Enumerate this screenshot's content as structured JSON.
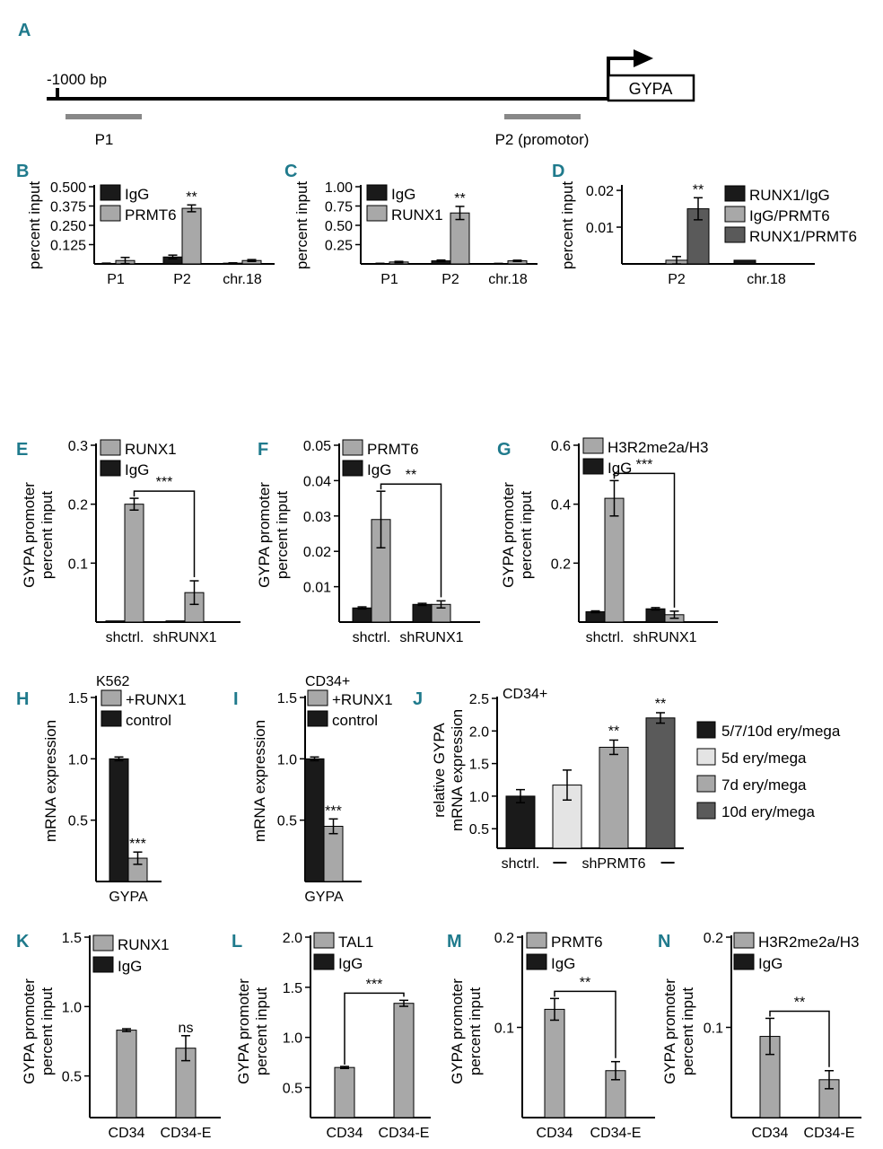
{
  "figure": {
    "palette": {
      "black": "#1a1a1a",
      "gray": "#a8a8a8",
      "light": "#e4e4e4",
      "dark": "#5a5a5a",
      "panel_letter": "#1f7a8c",
      "edge": "#000000"
    },
    "schematic": {
      "label": "A",
      "bp_label": "-1000 bp",
      "gene": "GYPA",
      "probe1": "P1",
      "probe2": "P2 (promotor)"
    }
  },
  "chart_data": [
    {
      "id": "B",
      "label": "B",
      "type": "bar",
      "title": "",
      "xlabel": "",
      "ylabel": [
        "percent input"
      ],
      "ylim": [
        0,
        0.5
      ],
      "yticks": [
        "0.500",
        "0.375",
        "0.250",
        "0.125"
      ],
      "yticks_values": [
        0.5,
        0.375,
        0.25,
        0.125
      ],
      "categories": [
        "P1",
        "P2",
        "chr.18"
      ],
      "series": [
        {
          "name": "IgG",
          "color": "black",
          "values": [
            0.003,
            0.045,
            0.005
          ],
          "errors": [
            0.002,
            0.012,
            0.002
          ]
        },
        {
          "name": "PRMT6",
          "color": "gray",
          "values": [
            0.022,
            0.36,
            0.022
          ],
          "errors": [
            0.02,
            0.022,
            0.006
          ]
        }
      ],
      "annotations": [
        {
          "cat": 1,
          "series": 1,
          "text": "**"
        }
      ]
    },
    {
      "id": "C",
      "label": "C",
      "type": "bar",
      "title": "",
      "xlabel": "",
      "ylabel": [
        "percent input"
      ],
      "ylim": [
        0,
        1
      ],
      "yticks": [
        "1.00",
        "0.75",
        "0.50",
        "0.25"
      ],
      "yticks_values": [
        1,
        0.75,
        0.5,
        0.25
      ],
      "categories": [
        "P1",
        "P2",
        "chr.18"
      ],
      "series": [
        {
          "name": "IgG",
          "color": "black",
          "values": [
            0.005,
            0.04,
            0.005
          ],
          "errors": [
            0.003,
            0.01,
            0.002
          ]
        },
        {
          "name": "RUNX1",
          "color": "gray",
          "values": [
            0.025,
            0.66,
            0.04
          ],
          "errors": [
            0.008,
            0.085,
            0.008
          ]
        }
      ],
      "annotations": [
        {
          "cat": 1,
          "series": 1,
          "text": "**"
        }
      ]
    },
    {
      "id": "D",
      "label": "D",
      "type": "bar",
      "title": "",
      "xlabel": "",
      "ylabel": [
        "percent input"
      ],
      "ylim": [
        0,
        0.021
      ],
      "yticks": [
        "0.02",
        "0.01"
      ],
      "yticks_values": [
        0.02,
        0.01
      ],
      "categories": [
        "P2",
        "chr.18"
      ],
      "series": [
        {
          "name": "RUNX1/IgG",
          "color": "black",
          "values": [
            0,
            0.001
          ],
          "errors": [
            0,
            0
          ]
        },
        {
          "name": "IgG/PRMT6",
          "color": "gray",
          "values": [
            0.001,
            0
          ],
          "errors": [
            0.001,
            0
          ]
        },
        {
          "name": "RUNX1/PRMT6",
          "color": "dark",
          "values": [
            0.015,
            0
          ],
          "errors": [
            0.003,
            0
          ]
        }
      ],
      "annotations": [
        {
          "cat": 0,
          "series": 2,
          "text": "**"
        }
      ]
    },
    {
      "id": "E",
      "label": "E",
      "type": "bar",
      "title": "",
      "xlabel": "",
      "ylabel": [
        "GYPA promoter",
        "percent input"
      ],
      "ylim": [
        0,
        0.3
      ],
      "yticks": [
        "0.3",
        "0.2",
        "0.1"
      ],
      "yticks_values": [
        0.3,
        0.2,
        0.1
      ],
      "categories": [
        "shctrl.",
        "shRUNX1"
      ],
      "series": [
        {
          "name": "IgG",
          "color": "black",
          "values": [
            0.002,
            0.002
          ],
          "errors": [
            0,
            0
          ]
        },
        {
          "name": "RUNX1",
          "color": "gray",
          "values": [
            0.2,
            0.05
          ],
          "errors": [
            0.01,
            0.02
          ]
        }
      ],
      "legend_order": [
        1,
        0
      ],
      "bracket": {
        "from": [
          0,
          1
        ],
        "to": [
          1,
          1
        ],
        "text": "***"
      }
    },
    {
      "id": "F",
      "label": "F",
      "type": "bar",
      "title": "",
      "xlabel": "",
      "ylabel": [
        "GYPA promoter",
        "percent input"
      ],
      "ylim": [
        0,
        0.05
      ],
      "yticks": [
        "0.05",
        "0.04",
        "0.03",
        "0.02",
        "0.01"
      ],
      "yticks_values": [
        0.05,
        0.04,
        0.03,
        0.02,
        0.01
      ],
      "categories": [
        "shctrl.",
        "shRUNX1"
      ],
      "series": [
        {
          "name": "IgG",
          "color": "black",
          "values": [
            0.004,
            0.005
          ],
          "errors": [
            0.0003,
            0.0003
          ]
        },
        {
          "name": "PRMT6",
          "color": "gray",
          "values": [
            0.029,
            0.005
          ],
          "errors": [
            0.008,
            0.001
          ]
        }
      ],
      "legend_order": [
        1,
        0
      ],
      "bracket": {
        "from": [
          0,
          1
        ],
        "to": [
          1,
          1
        ],
        "text": "**"
      }
    },
    {
      "id": "G",
      "label": "G",
      "type": "bar",
      "title": "",
      "xlabel": "",
      "ylabel": [
        "GYPA promoter",
        "percent input"
      ],
      "ylim": [
        0,
        0.6
      ],
      "yticks": [
        "0.6",
        "0.4",
        "0.2"
      ],
      "yticks_values": [
        0.6,
        0.4,
        0.2
      ],
      "categories": [
        "shctrl.",
        "shRUNX1"
      ],
      "series": [
        {
          "name": "IgG",
          "color": "black",
          "values": [
            0.035,
            0.045
          ],
          "errors": [
            0.003,
            0.004
          ]
        },
        {
          "name": "H3R2me2a/H3",
          "color": "gray",
          "values": [
            0.42,
            0.025
          ],
          "errors": [
            0.06,
            0.012
          ]
        }
      ],
      "legend_order": [
        1,
        0
      ],
      "bracket": {
        "from": [
          0,
          1
        ],
        "to": [
          1,
          1
        ],
        "text": "***"
      }
    },
    {
      "id": "H",
      "label": "H",
      "type": "bar",
      "title": "K562",
      "xlabel": "",
      "ylabel": [
        "mRNA expression"
      ],
      "ylim": [
        0,
        1.5
      ],
      "yticks": [
        "1.5",
        "1.0",
        "0.5"
      ],
      "yticks_values": [
        1.5,
        1.0,
        0.5
      ],
      "categories": [
        "GYPA"
      ],
      "series": [
        {
          "name": "control",
          "color": "black",
          "values": [
            1.0
          ],
          "errors": [
            0.015
          ]
        },
        {
          "name": "+RUNX1",
          "color": "gray",
          "values": [
            0.19
          ],
          "errors": [
            0.05
          ]
        }
      ],
      "legend_order": [
        1,
        0
      ],
      "annotations": [
        {
          "cat": 0,
          "series": 1,
          "text": "***"
        }
      ]
    },
    {
      "id": "I",
      "label": "I",
      "type": "bar",
      "title": "CD34+",
      "xlabel": "",
      "ylabel": [
        "mRNA expression"
      ],
      "ylim": [
        0,
        1.5
      ],
      "yticks": [
        "1.5",
        "1.0",
        "0.5"
      ],
      "yticks_values": [
        1.5,
        1.0,
        0.5
      ],
      "categories": [
        "GYPA"
      ],
      "series": [
        {
          "name": "control",
          "color": "black",
          "values": [
            1.0
          ],
          "errors": [
            0.015
          ]
        },
        {
          "name": "+RUNX1",
          "color": "gray",
          "values": [
            0.45
          ],
          "errors": [
            0.06
          ]
        }
      ],
      "legend_order": [
        1,
        0
      ],
      "annotations": [
        {
          "cat": 0,
          "series": 1,
          "text": "***"
        }
      ]
    },
    {
      "id": "J",
      "label": "J",
      "type": "bar",
      "title": "CD34+",
      "xlabel": "",
      "ylabel": [
        "relative GYPA",
        "mRNA expression"
      ],
      "ylim": [
        0.2,
        2.5
      ],
      "yticks": [
        "2.5",
        "2.0",
        "1.5",
        "1.0",
        "0.5"
      ],
      "yticks_values": [
        2.5,
        2.0,
        1.5,
        1.0,
        0.5
      ],
      "categories": [
        "shctrl.",
        "shPRMT6"
      ],
      "bars": [
        {
          "name": "5/7/10d ery/mega",
          "color": "black",
          "value": 1.0,
          "error": 0.1
        },
        {
          "name": "5d ery/mega",
          "color": "light",
          "value": 1.17,
          "error": 0.23
        },
        {
          "name": "7d ery/mega",
          "color": "gray",
          "value": 1.75,
          "error": 0.11,
          "star": "**"
        },
        {
          "name": "10d ery/mega",
          "color": "dark",
          "value": 2.2,
          "error": 0.08,
          "star": "**"
        }
      ]
    },
    {
      "id": "K",
      "label": "K",
      "type": "bar",
      "title": "",
      "xlabel": "",
      "ylabel": [
        "GYPA promoter",
        "percent input"
      ],
      "ylim": [
        0.2,
        1.5
      ],
      "yticks": [
        "1.5",
        "1.0",
        "0.5"
      ],
      "yticks_values": [
        1.5,
        1.0,
        0.5
      ],
      "categories": [
        "CD34",
        "CD34-E"
      ],
      "series": [
        {
          "name": "IgG",
          "color": "black",
          "values": [
            0,
            0
          ],
          "errors": [
            0,
            0
          ]
        },
        {
          "name": "RUNX1",
          "color": "gray",
          "values": [
            0.83,
            0.7
          ],
          "errors": [
            0.01,
            0.09
          ]
        }
      ],
      "legend_order": [
        1,
        0
      ],
      "single": true,
      "annotations": [
        {
          "cat": 1,
          "series": 1,
          "text": "ns"
        }
      ]
    },
    {
      "id": "L",
      "label": "L",
      "type": "bar",
      "title": "",
      "xlabel": "",
      "ylabel": [
        "GYPA promoter",
        "percent input"
      ],
      "ylim": [
        0.2,
        2.0
      ],
      "yticks": [
        "2.0",
        "1.5",
        "1.0",
        "0.5"
      ],
      "yticks_values": [
        2.0,
        1.5,
        1.0,
        0.5
      ],
      "categories": [
        "CD34",
        "CD34-E"
      ],
      "series": [
        {
          "name": "IgG",
          "color": "black",
          "values": [
            0,
            0
          ],
          "errors": [
            0,
            0
          ]
        },
        {
          "name": "TAL1",
          "color": "gray",
          "values": [
            0.7,
            1.34
          ],
          "errors": [
            0.01,
            0.03
          ]
        }
      ],
      "legend_order": [
        1,
        0
      ],
      "single": true,
      "bracket": {
        "from": [
          0,
          1
        ],
        "to": [
          1,
          1
        ],
        "text": "***"
      }
    },
    {
      "id": "M",
      "label": "M",
      "type": "bar",
      "title": "",
      "xlabel": "",
      "ylabel": [
        "GYPA promoter",
        "percent input"
      ],
      "ylim": [
        0,
        0.2
      ],
      "yticks": [
        "0.2",
        "0.1"
      ],
      "yticks_values": [
        0.2,
        0.1
      ],
      "categories": [
        "CD34",
        "CD34-E"
      ],
      "series": [
        {
          "name": "IgG",
          "color": "black",
          "values": [
            0,
            0
          ],
          "errors": [
            0,
            0
          ]
        },
        {
          "name": "PRMT6",
          "color": "gray",
          "values": [
            0.12,
            0.052
          ],
          "errors": [
            0.012,
            0.01
          ]
        }
      ],
      "legend_order": [
        1,
        0
      ],
      "single": true,
      "bracket": {
        "from": [
          0,
          1
        ],
        "to": [
          1,
          1
        ],
        "text": "**"
      }
    },
    {
      "id": "N",
      "label": "N",
      "type": "bar",
      "title": "",
      "xlabel": "",
      "ylabel": [
        "GYPA promoter",
        "percent input"
      ],
      "ylim": [
        0,
        0.2
      ],
      "yticks": [
        "0.2",
        "0.1"
      ],
      "yticks_values": [
        0.2,
        0.1
      ],
      "categories": [
        "CD34",
        "CD34-E"
      ],
      "series": [
        {
          "name": "IgG",
          "color": "black",
          "values": [
            0,
            0
          ],
          "errors": [
            0,
            0
          ]
        },
        {
          "name": "H3R2me2a/H3",
          "color": "gray",
          "values": [
            0.09,
            0.042
          ],
          "errors": [
            0.02,
            0.01
          ]
        }
      ],
      "legend_order": [
        1,
        0
      ],
      "single": true,
      "bracket": {
        "from": [
          0,
          1
        ],
        "to": [
          1,
          1
        ],
        "text": "**"
      }
    }
  ]
}
